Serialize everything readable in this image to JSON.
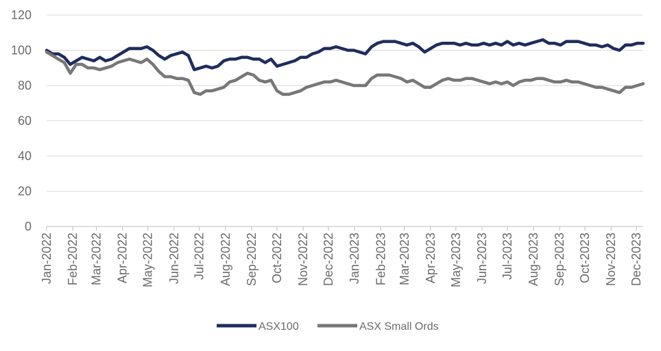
{
  "chart_data": {
    "type": "line",
    "title": "",
    "xlabel": "",
    "ylabel": "",
    "ylim": [
      0,
      120
    ],
    "yticks": [
      0,
      20,
      40,
      60,
      80,
      100,
      120
    ],
    "grid": "horizontal",
    "legend_position": "bottom",
    "x_tick_labels": [
      "Jan-2022",
      "Feb-2022",
      "Mar-2022",
      "Apr-2022",
      "May-2022",
      "Jun-2022",
      "Jul-2022",
      "Aug-2022",
      "Sep-2022",
      "Oct-2022",
      "Nov-2022",
      "Dec-2022",
      "Jan-2023",
      "Feb-2023",
      "Mar-2023",
      "Apr-2023",
      "May-2023",
      "Jun-2023",
      "Jul-2023",
      "Aug-2023",
      "Sep-2023",
      "Oct-2023",
      "Nov-2023",
      "Dec-2023"
    ],
    "x": [
      "2022-01-01",
      "2022-01-08",
      "2022-01-15",
      "2022-01-22",
      "2022-01-29",
      "2022-02-05",
      "2022-02-12",
      "2022-02-19",
      "2022-02-26",
      "2022-03-05",
      "2022-03-12",
      "2022-03-19",
      "2022-03-26",
      "2022-04-02",
      "2022-04-09",
      "2022-04-16",
      "2022-04-23",
      "2022-04-30",
      "2022-05-07",
      "2022-05-14",
      "2022-05-21",
      "2022-05-28",
      "2022-06-04",
      "2022-06-11",
      "2022-06-18",
      "2022-06-25",
      "2022-07-02",
      "2022-07-09",
      "2022-07-16",
      "2022-07-23",
      "2022-07-30",
      "2022-08-06",
      "2022-08-13",
      "2022-08-20",
      "2022-08-27",
      "2022-09-03",
      "2022-09-10",
      "2022-09-17",
      "2022-09-24",
      "2022-10-01",
      "2022-10-08",
      "2022-10-15",
      "2022-10-22",
      "2022-10-29",
      "2022-11-05",
      "2022-11-12",
      "2022-11-19",
      "2022-11-26",
      "2022-12-03",
      "2022-12-10",
      "2022-12-17",
      "2022-12-24",
      "2022-12-31",
      "2023-01-07",
      "2023-01-14",
      "2023-01-21",
      "2023-01-28",
      "2023-02-04",
      "2023-02-11",
      "2023-02-18",
      "2023-02-25",
      "2023-03-04",
      "2023-03-11",
      "2023-03-18",
      "2023-03-25",
      "2023-04-01",
      "2023-04-08",
      "2023-04-15",
      "2023-04-22",
      "2023-04-29",
      "2023-05-06",
      "2023-05-13",
      "2023-05-20",
      "2023-05-27",
      "2023-06-03",
      "2023-06-10",
      "2023-06-17",
      "2023-06-24",
      "2023-07-01",
      "2023-07-08",
      "2023-07-15",
      "2023-07-22",
      "2023-07-29",
      "2023-08-05",
      "2023-08-12",
      "2023-08-19",
      "2023-08-26",
      "2023-09-02",
      "2023-09-09",
      "2023-09-16",
      "2023-09-23",
      "2023-09-30",
      "2023-10-07",
      "2023-10-14",
      "2023-10-21",
      "2023-10-28",
      "2023-11-04",
      "2023-11-11",
      "2023-11-18",
      "2023-11-25",
      "2023-12-02",
      "2023-12-09"
    ],
    "series": [
      {
        "name": "ASX100",
        "color": "#1f2d5c",
        "values": [
          100,
          98,
          98,
          96,
          92,
          94,
          96,
          95,
          94,
          96,
          94,
          95,
          97,
          99,
          101,
          101,
          101,
          102,
          100,
          97,
          95,
          97,
          98,
          99,
          97,
          89,
          90,
          91,
          90,
          91,
          94,
          95,
          95,
          96,
          96,
          95,
          95,
          93,
          95,
          91,
          92,
          93,
          94,
          96,
          96,
          98,
          99,
          101,
          101,
          102,
          101,
          100,
          100,
          99,
          98,
          102,
          104,
          105,
          105,
          105,
          104,
          103,
          104,
          102,
          99,
          101,
          103,
          104,
          104,
          104,
          103,
          104,
          103,
          103,
          104,
          103,
          104,
          103,
          105,
          103,
          104,
          103,
          104,
          105,
          106,
          104,
          104,
          103,
          105,
          105,
          105,
          104,
          103,
          103,
          102,
          103,
          101,
          100,
          103,
          103,
          104,
          104
        ]
      },
      {
        "name": "ASX Small Ords",
        "color": "#777777",
        "values": [
          99,
          97,
          95,
          93,
          87,
          92,
          92,
          90,
          90,
          89,
          90,
          91,
          93,
          94,
          95,
          94,
          93,
          95,
          92,
          88,
          85,
          85,
          84,
          84,
          83,
          76,
          75,
          77,
          77,
          78,
          79,
          82,
          83,
          85,
          87,
          86,
          83,
          82,
          83,
          77,
          75,
          75,
          76,
          77,
          79,
          80,
          81,
          82,
          82,
          83,
          82,
          81,
          80,
          80,
          80,
          84,
          86,
          86,
          86,
          85,
          84,
          82,
          83,
          81,
          79,
          79,
          81,
          83,
          84,
          83,
          83,
          84,
          84,
          83,
          82,
          81,
          82,
          81,
          82,
          80,
          82,
          83,
          83,
          84,
          84,
          83,
          82,
          82,
          83,
          82,
          82,
          81,
          80,
          79,
          79,
          78,
          77,
          76,
          79,
          79,
          80,
          81
        ]
      }
    ]
  }
}
